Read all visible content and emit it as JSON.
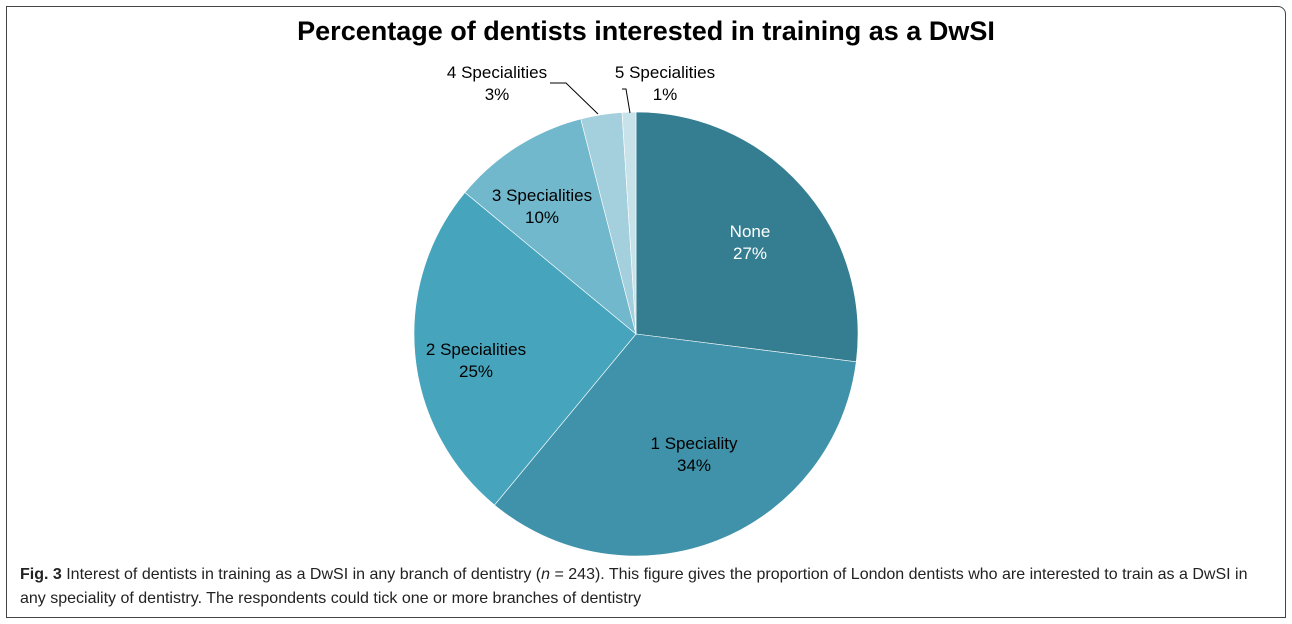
{
  "chart_data": {
    "type": "pie",
    "title": "Percentage of dentists interested in training as a DwSI",
    "slices": [
      {
        "label": "None",
        "value": 27,
        "pct_label": "27%",
        "color": "#357e91"
      },
      {
        "label": "1 Speciality",
        "value": 34,
        "pct_label": "34%",
        "color": "#3f92a9"
      },
      {
        "label": "2 Specialities",
        "value": 25,
        "pct_label": "25%",
        "color": "#46a5bd"
      },
      {
        "label": "3 Specialities",
        "value": 10,
        "pct_label": "10%",
        "color": "#72b8cd"
      },
      {
        "label": "4 Specialities",
        "value": 3,
        "pct_label": "3%",
        "color": "#a4cfdd"
      },
      {
        "label": "5 Specialities",
        "value": 1,
        "pct_label": "1%",
        "color": "#c8e2ea"
      }
    ]
  },
  "caption": {
    "fig_label": "Fig. 3",
    "text_a": " Interest of dentists in training as a DwSI in any branch of dentistry (",
    "n_symbol": "n",
    "text_b": " = 243). This figure gives the proportion of London dentists who are interested to train as a DwSI in any speciality of dentistry. The respondents could tick one or more branches of dentistry"
  }
}
